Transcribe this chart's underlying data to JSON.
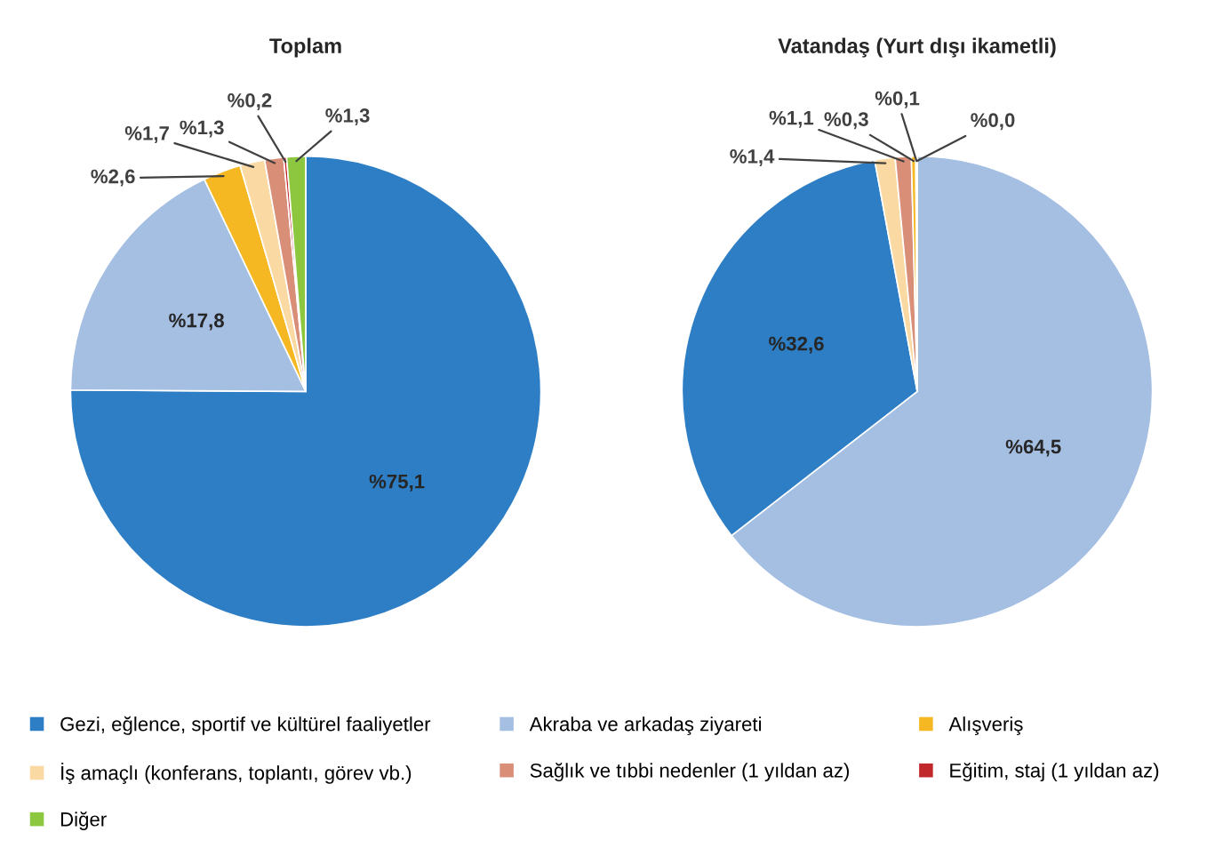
{
  "chart_data": [
    {
      "type": "pie",
      "title": "Toplam",
      "legend": "bottom",
      "categories": [
        "Gezi, eğlence, sportif ve kültürel faaliyetler",
        "Akraba ve arkadaş ziyareti",
        "Alışveriş",
        "İş amaçlı (konferans, toplantı, görev vb.)",
        "Sağlık ve tıbbi nedenler (1 yıldan az)",
        "Eğitim, staj (1 yıldan az)",
        "Diğer"
      ],
      "values": [
        75.1,
        17.8,
        2.6,
        1.7,
        1.3,
        0.2,
        1.3
      ],
      "value_labels": [
        "%75,1",
        "%17,8",
        "%2,6",
        "%1,7",
        "%1,3",
        "%0,2",
        "%1,3"
      ],
      "colors": [
        "#2e7ec5",
        "#a5bfe3",
        "#f5b823",
        "#fbd9a2",
        "#d98e78",
        "#c0282c",
        "#8dc63f"
      ]
    },
    {
      "type": "pie",
      "title": "Vatandaş (Yurt dışı ikametli)",
      "categories": [
        null,
        null,
        null,
        null,
        null,
        null,
        null
      ],
      "values": [
        64.5,
        32.6,
        1.4,
        1.1,
        0.3,
        0.1,
        0.0
      ],
      "value_labels": [
        "%64,5",
        "%32,6",
        "%1,4",
        "%1,1",
        "%0,3",
        "%0,1",
        "%0,0"
      ],
      "colors": [
        "#a5bfe3",
        "#2e7ec5",
        "#fbd9a2",
        "#d98e78",
        "#f5b823",
        "#c0282c",
        "#8dc63f"
      ]
    }
  ]
}
